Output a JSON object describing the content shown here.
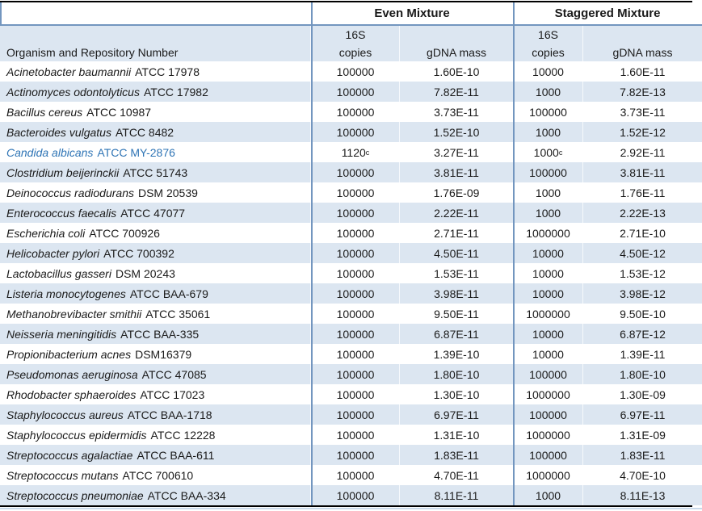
{
  "table": {
    "group_headers": {
      "even": "Even Mixture",
      "staggered": "Staggered Mixture"
    },
    "subheaders": {
      "even_16s": "16S",
      "staggered_16s": "16S"
    },
    "column_headers": {
      "organism": "Organism and Repository Number",
      "even_copies": "copies",
      "even_gdna": "gDNA mass",
      "staggered_copies": "copies",
      "staggered_gdna": "gDNA mass"
    },
    "colors": {
      "shaded_row": "#DCE6F1",
      "blue_border": "#7396BF",
      "dark_border": "#000000",
      "highlight_text": "#2E74B5",
      "text": "#1A1A1A"
    },
    "rows": [
      {
        "name": "Acinetobacter baumannii",
        "repo": "ATCC 17978",
        "even_copies": "100000",
        "even_copies_sup": "",
        "even_gdna": "1.60E-10",
        "stag_copies": "10000",
        "stag_copies_sup": "",
        "stag_gdna": "1.60E-11",
        "highlighted": false
      },
      {
        "name": "Actinomyces odontolyticus",
        "repo": "ATCC 17982",
        "even_copies": "100000",
        "even_copies_sup": "",
        "even_gdna": "7.82E-11",
        "stag_copies": "1000",
        "stag_copies_sup": "",
        "stag_gdna": "7.82E-13",
        "highlighted": false
      },
      {
        "name": "Bacillus cereus",
        "repo": "ATCC 10987",
        "even_copies": "100000",
        "even_copies_sup": "",
        "even_gdna": "3.73E-11",
        "stag_copies": "100000",
        "stag_copies_sup": "",
        "stag_gdna": "3.73E-11",
        "highlighted": false
      },
      {
        "name": "Bacteroides vulgatus",
        "repo": "ATCC 8482",
        "even_copies": "100000",
        "even_copies_sup": "",
        "even_gdna": "1.52E-10",
        "stag_copies": "1000",
        "stag_copies_sup": "",
        "stag_gdna": "1.52E-12",
        "highlighted": false
      },
      {
        "name": "Candida albicans",
        "repo": "ATCC MY-2876",
        "even_copies": "1120",
        "even_copies_sup": "c",
        "even_gdna": "3.27E-11",
        "stag_copies": "1000",
        "stag_copies_sup": "c",
        "stag_gdna": "2.92E-11",
        "highlighted": true
      },
      {
        "name": "Clostridium beijerinckii",
        "repo": "ATCC 51743",
        "even_copies": "100000",
        "even_copies_sup": "",
        "even_gdna": "3.81E-11",
        "stag_copies": "100000",
        "stag_copies_sup": "",
        "stag_gdna": "3.81E-11",
        "highlighted": false
      },
      {
        "name": "Deinococcus radiodurans",
        "repo": "DSM 20539",
        "even_copies": "100000",
        "even_copies_sup": "",
        "even_gdna": "1.76E-09",
        "stag_copies": "1000",
        "stag_copies_sup": "",
        "stag_gdna": "1.76E-11",
        "highlighted": false
      },
      {
        "name": "Enterococcus faecalis",
        "repo": "ATCC 47077",
        "even_copies": "100000",
        "even_copies_sup": "",
        "even_gdna": "2.22E-11",
        "stag_copies": "1000",
        "stag_copies_sup": "",
        "stag_gdna": "2.22E-13",
        "highlighted": false
      },
      {
        "name": "Escherichia coli",
        "repo": "ATCC 700926",
        "even_copies": "100000",
        "even_copies_sup": "",
        "even_gdna": "2.71E-11",
        "stag_copies": "1000000",
        "stag_copies_sup": "",
        "stag_gdna": "2.71E-10",
        "highlighted": false
      },
      {
        "name": "Helicobacter pylori",
        "repo": "ATCC 700392",
        "even_copies": "100000",
        "even_copies_sup": "",
        "even_gdna": "4.50E-11",
        "stag_copies": "10000",
        "stag_copies_sup": "",
        "stag_gdna": "4.50E-12",
        "highlighted": false
      },
      {
        "name": "Lactobacillus gasseri",
        "repo": "DSM 20243",
        "even_copies": "100000",
        "even_copies_sup": "",
        "even_gdna": "1.53E-11",
        "stag_copies": "10000",
        "stag_copies_sup": "",
        "stag_gdna": "1.53E-12",
        "highlighted": false
      },
      {
        "name": "Listeria monocytogenes",
        "repo": "ATCC BAA-679",
        "even_copies": "100000",
        "even_copies_sup": "",
        "even_gdna": "3.98E-11",
        "stag_copies": "10000",
        "stag_copies_sup": "",
        "stag_gdna": "3.98E-12",
        "highlighted": false
      },
      {
        "name": "Methanobrevibacter smithii",
        "repo": "ATCC 35061",
        "even_copies": "100000",
        "even_copies_sup": "",
        "even_gdna": "9.50E-11",
        "stag_copies": "1000000",
        "stag_copies_sup": "",
        "stag_gdna": "9.50E-10",
        "highlighted": false
      },
      {
        "name": "Neisseria meningitidis",
        "repo": "ATCC BAA-335",
        "even_copies": "100000",
        "even_copies_sup": "",
        "even_gdna": "6.87E-11",
        "stag_copies": "10000",
        "stag_copies_sup": "",
        "stag_gdna": "6.87E-12",
        "highlighted": false
      },
      {
        "name": "Propionibacterium acnes",
        "repo": "DSM16379",
        "even_copies": "100000",
        "even_copies_sup": "",
        "even_gdna": "1.39E-10",
        "stag_copies": "10000",
        "stag_copies_sup": "",
        "stag_gdna": "1.39E-11",
        "highlighted": false
      },
      {
        "name": "Pseudomonas aeruginosa",
        "repo": "ATCC 47085",
        "even_copies": "100000",
        "even_copies_sup": "",
        "even_gdna": "1.80E-10",
        "stag_copies": "100000",
        "stag_copies_sup": "",
        "stag_gdna": "1.80E-10",
        "highlighted": false
      },
      {
        "name": "Rhodobacter sphaeroides",
        "repo": "ATCC 17023",
        "even_copies": "100000",
        "even_copies_sup": "",
        "even_gdna": "1.30E-10",
        "stag_copies": "1000000",
        "stag_copies_sup": "",
        "stag_gdna": "1.30E-09",
        "highlighted": false
      },
      {
        "name": "Staphylococcus aureus",
        "repo": "ATCC BAA-1718",
        "even_copies": "100000",
        "even_copies_sup": "",
        "even_gdna": "6.97E-11",
        "stag_copies": "100000",
        "stag_copies_sup": "",
        "stag_gdna": "6.97E-11",
        "highlighted": false
      },
      {
        "name": "Staphylococcus epidermidis",
        "repo": "ATCC 12228",
        "even_copies": "100000",
        "even_copies_sup": "",
        "even_gdna": "1.31E-10",
        "stag_copies": "1000000",
        "stag_copies_sup": "",
        "stag_gdna": "1.31E-09",
        "highlighted": false
      },
      {
        "name": "Streptococcus agalactiae",
        "repo": "ATCC BAA-611",
        "even_copies": "100000",
        "even_copies_sup": "",
        "even_gdna": "1.83E-11",
        "stag_copies": "100000",
        "stag_copies_sup": "",
        "stag_gdna": "1.83E-11",
        "highlighted": false
      },
      {
        "name": "Streptococcus mutans",
        "repo": "ATCC 700610",
        "even_copies": "100000",
        "even_copies_sup": "",
        "even_gdna": "4.70E-11",
        "stag_copies": "1000000",
        "stag_copies_sup": "",
        "stag_gdna": "4.70E-10",
        "highlighted": false
      },
      {
        "name": "Streptococcus pneumoniae",
        "repo": "ATCC BAA-334",
        "even_copies": "100000",
        "even_copies_sup": "",
        "even_gdna": "8.11E-11",
        "stag_copies": "1000",
        "stag_copies_sup": "",
        "stag_gdna": "8.11E-13",
        "highlighted": false
      }
    ]
  }
}
